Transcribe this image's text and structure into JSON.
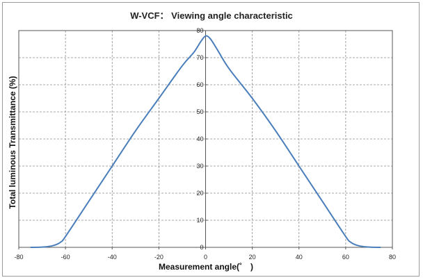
{
  "chart_data": {
    "type": "line",
    "title": "W-VCF： Viewing angle characteristic",
    "xlabel": "Measurement angle(˚　)",
    "ylabel": "Total luminous Transmittance (%)",
    "xlim": [
      -80,
      80
    ],
    "ylim": [
      0,
      80
    ],
    "xticks": [
      -80,
      -60,
      -40,
      -20,
      0,
      20,
      40,
      60,
      80
    ],
    "yticks": [
      0,
      10,
      20,
      30,
      40,
      50,
      60,
      70,
      80
    ],
    "grid": true,
    "series_color": "#4a7ebb",
    "series": [
      {
        "x": [
          -75,
          -70,
          -66,
          -64,
          -62,
          -60,
          -50,
          -40,
          -30,
          -20,
          -10,
          -5,
          -2,
          0,
          2,
          5,
          10,
          20,
          30,
          40,
          50,
          60,
          62,
          64,
          66,
          70,
          75
        ],
        "y": [
          0,
          0.1,
          0.5,
          1,
          2,
          4,
          17,
          30,
          43,
          55,
          67,
          72,
          76,
          78,
          77,
          73,
          66,
          55,
          43,
          30,
          17,
          4,
          2,
          1,
          0.5,
          0.1,
          0
        ]
      }
    ]
  }
}
